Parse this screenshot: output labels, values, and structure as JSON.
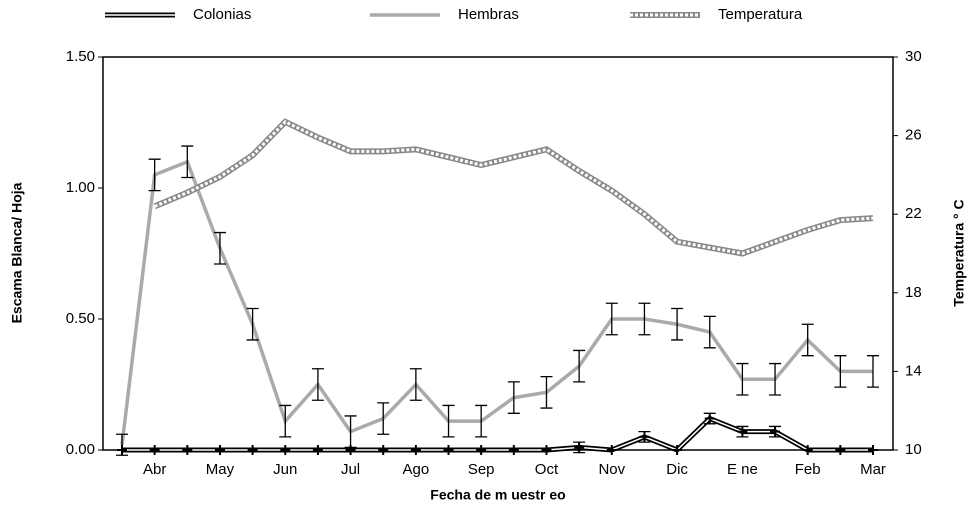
{
  "chart_data": {
    "type": "line",
    "x_label": "Fecha de m uestr eo",
    "y_label": "Escama Blanca/ Hoja",
    "y2_label": "Temperatura ° C",
    "categories": [
      null,
      "Abr",
      null,
      "May",
      null,
      "Jun",
      null,
      "Jul",
      null,
      "Ago",
      null,
      "Sep",
      null,
      "Oct",
      null,
      "Nov",
      null,
      "Dic",
      null,
      "E ne",
      null,
      "Feb",
      null,
      "Mar"
    ],
    "ylim": [
      0,
      1.5
    ],
    "yticks": [
      {
        "value": 0,
        "label": "0.00"
      },
      {
        "value": 0.5,
        "label": "0.50"
      },
      {
        "value": 1,
        "label": "1.00"
      },
      {
        "value": 1.5,
        "label": "1.50"
      }
    ],
    "y2lim": [
      10,
      30
    ],
    "y2ticks": [
      10,
      14,
      18,
      22,
      26,
      30
    ],
    "legend": "top",
    "series": [
      {
        "name": "Colonias",
        "color": "#000000",
        "style": "double",
        "values": [
          0,
          0,
          0,
          0,
          0,
          0,
          0,
          0,
          0,
          0,
          0,
          0,
          0,
          0,
          0.01,
          0,
          0.05,
          0,
          0.12,
          0.07,
          0.07,
          0,
          0,
          0
        ],
        "errors": [
          null,
          null,
          null,
          null,
          null,
          null,
          null,
          null,
          null,
          null,
          null,
          null,
          null,
          null,
          0.02,
          null,
          0.02,
          null,
          0.02,
          0.02,
          0.02,
          null,
          null,
          null
        ]
      },
      {
        "name": "Hembras",
        "color": "#aaaaaa",
        "style": "solid",
        "values": [
          0.02,
          1.05,
          1.1,
          0.77,
          0.48,
          0.11,
          0.25,
          0.07,
          0.12,
          0.25,
          0.11,
          0.11,
          0.2,
          0.22,
          0.32,
          0.5,
          0.5,
          0.48,
          0.45,
          0.27,
          0.27,
          0.42,
          0.3,
          0.3
        ],
        "errors": [
          0.04,
          0.06,
          0.06,
          0.06,
          0.06,
          0.06,
          0.06,
          0.06,
          0.06,
          0.06,
          0.06,
          0.06,
          0.06,
          0.06,
          0.06,
          0.06,
          0.06,
          0.06,
          0.06,
          0.06,
          0.06,
          0.06,
          0.06,
          0.06
        ]
      },
      {
        "name": "Temperatura",
        "color": "#888888",
        "style": "dashed",
        "axis": "y2",
        "values": [
          null,
          22.4,
          23.1,
          23.9,
          25.0,
          26.7,
          25.9,
          25.2,
          25.2,
          25.3,
          24.9,
          24.5,
          24.9,
          25.3,
          24.2,
          23.2,
          22.0,
          20.6,
          20.3,
          20.0,
          20.6,
          21.2,
          21.7,
          21.8
        ]
      }
    ]
  }
}
